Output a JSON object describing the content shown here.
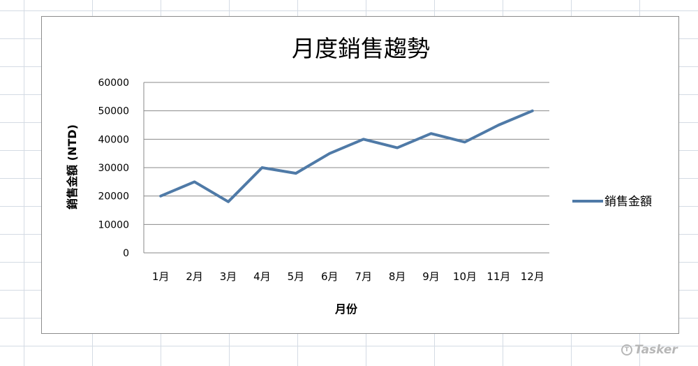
{
  "chart_data": {
    "type": "line",
    "title": "月度銷售趨勢",
    "xlabel": "月份",
    "ylabel": "銷售金額 (NTD)",
    "categories": [
      "1月",
      "2月",
      "3月",
      "4月",
      "5月",
      "6月",
      "7月",
      "8月",
      "9月",
      "10月",
      "11月",
      "12月"
    ],
    "series": [
      {
        "name": "銷售金額",
        "color": "#4f7aa7",
        "values": [
          20000,
          25000,
          18000,
          30000,
          28000,
          35000,
          40000,
          37000,
          42000,
          39000,
          45000,
          50000
        ]
      }
    ],
    "ylim": [
      0,
      60000
    ],
    "yticks": [
      "0",
      "10000",
      "20000",
      "30000",
      "40000",
      "50000",
      "60000"
    ],
    "grid": "horizontal",
    "legend_position": "right"
  },
  "watermark": {
    "text": "Tasker",
    "logo_glyph": "T"
  }
}
